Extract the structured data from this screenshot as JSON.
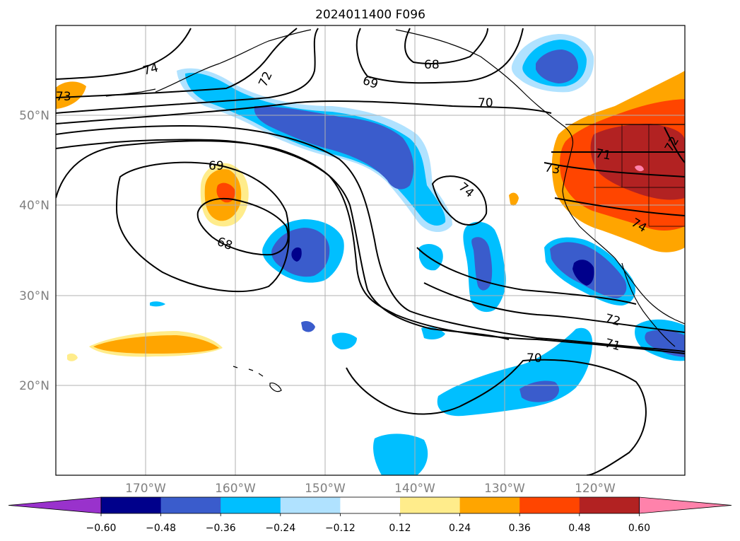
{
  "title": "2024011400 F096",
  "lat_labels": [
    "50°N",
    "40°N",
    "30°N",
    "20°N"
  ],
  "lon_labels": [
    "170°W",
    "160°W",
    "150°W",
    "140°W",
    "130°W",
    "120°W"
  ],
  "colorbar": {
    "ticks": [
      "−0.60",
      "−0.48",
      "−0.36",
      "−0.24",
      "−0.12",
      "0.12",
      "0.24",
      "0.36",
      "0.48",
      "0.60"
    ],
    "colors": [
      "#9932cc",
      "#00008b",
      "#3a5ccc",
      "#00bfff",
      "#b0e2ff",
      "#ffffff",
      "#ffec8b",
      "#ffa500",
      "#ff4500",
      "#b22222",
      "#ff82ab"
    ]
  },
  "contour_labels": [
    "74",
    "72",
    "69",
    "68",
    "70",
    "73",
    "71",
    "69",
    "68",
    "74",
    "74",
    "72",
    "71",
    "70",
    "72",
    "73"
  ]
}
